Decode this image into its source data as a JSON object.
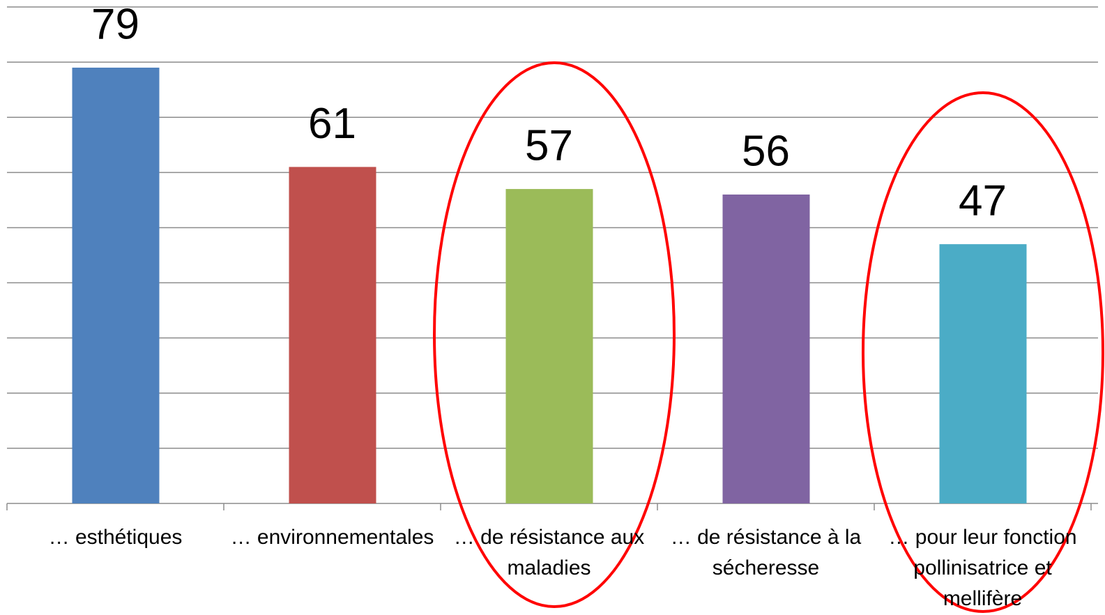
{
  "chart_data": {
    "type": "bar",
    "categories": [
      "… esthétiques",
      "… environnementales",
      "… de résistance aux maladies",
      "… de résistance à la sécheresse",
      "… pour leur fonction pollinisatrice et mellifère"
    ],
    "values": [
      79,
      61,
      57,
      56,
      47
    ],
    "colors": [
      "#4f81bd",
      "#c0504d",
      "#9bbb59",
      "#8064a2",
      "#4bacc6"
    ],
    "ylim": [
      0,
      90
    ],
    "yticks": [
      0,
      10,
      20,
      30,
      40,
      50,
      60,
      70,
      80,
      90
    ],
    "grid": true
  }
}
